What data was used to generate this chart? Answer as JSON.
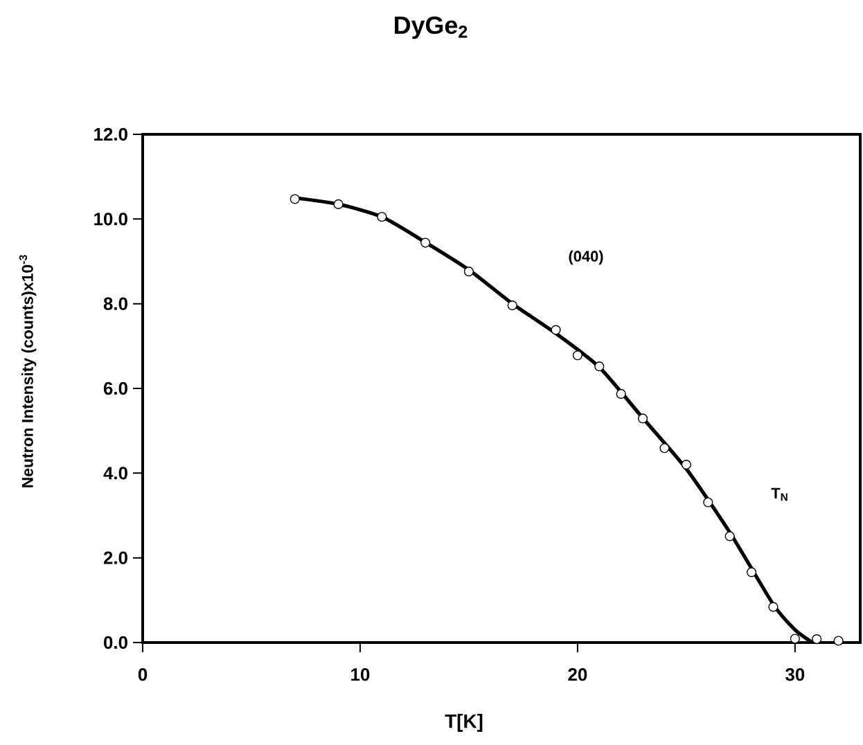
{
  "chart_data": {
    "type": "scatter",
    "title": "DyGe$_{2}$",
    "xlabel": "T[K]",
    "ylabel": "Neutron Intensity (counts)x10$^{-3}$",
    "xlim": [
      0,
      33
    ],
    "xticks": [
      0,
      10,
      20,
      30
    ],
    "ylim": [
      0,
      12
    ],
    "yticks": [
      {
        "value": 0,
        "label": "0.0"
      },
      {
        "value": 2,
        "label": "2.0"
      },
      {
        "value": 4,
        "label": "4.0"
      },
      {
        "value": 6,
        "label": "6.0"
      },
      {
        "value": 8,
        "label": "8.0"
      },
      {
        "value": 10,
        "label": "10.0"
      },
      {
        "value": 12,
        "label": "12.0"
      }
    ],
    "grid": false,
    "series": [
      {
        "marker": "circle",
        "color": "#000000",
        "x": [
          7,
          9,
          11,
          13,
          15,
          17,
          19,
          20,
          21,
          22,
          23,
          24,
          25,
          26,
          27,
          28,
          29,
          30,
          31,
          32
        ],
        "values": [
          10.47,
          10.35,
          10.05,
          9.44,
          8.76,
          7.96,
          7.38,
          6.78,
          6.52,
          5.87,
          5.29,
          4.59,
          4.2,
          3.31,
          2.51,
          1.66,
          0.84,
          0.09,
          0.08,
          0.04
        ]
      },
      {
        "type": "line",
        "marker": "none",
        "line_style": "solid",
        "color": "#000000",
        "x": [
          7,
          9,
          11,
          13,
          15,
          17,
          19,
          21,
          23,
          25,
          27,
          29,
          30,
          30.8
        ],
        "values": [
          10.5,
          10.35,
          10.05,
          9.45,
          8.8,
          8.0,
          7.3,
          6.5,
          5.3,
          4.1,
          2.6,
          0.9,
          0.3,
          0.0
        ]
      }
    ],
    "annotations": [
      "(040)",
      "T$_{N}$"
    ]
  }
}
